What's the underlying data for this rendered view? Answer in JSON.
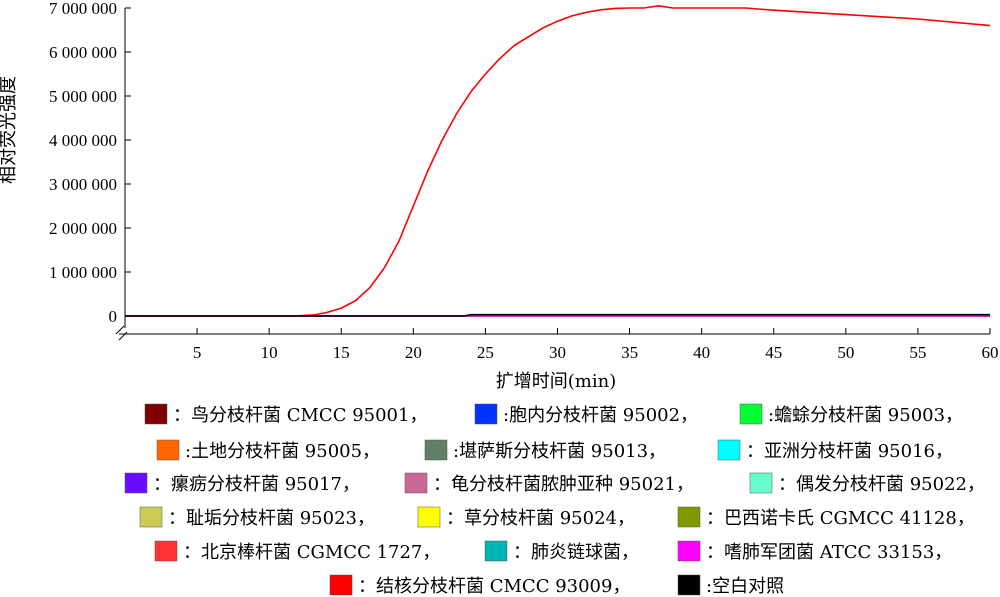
{
  "chart_data": {
    "type": "line",
    "ylabel": "相对荧光强度",
    "xlabel": "扩增时间(min)",
    "xlim": [
      0,
      60
    ],
    "ylim": [
      0,
      7000000
    ],
    "x_ticks": [
      5,
      10,
      15,
      20,
      25,
      30,
      35,
      40,
      45,
      50,
      55,
      60
    ],
    "x_tick_labels": [
      "5",
      "10",
      "15",
      "20",
      "25",
      "30",
      "35",
      "40",
      "45",
      "50",
      "55",
      "60"
    ],
    "y_ticks": [
      0,
      1000000,
      2000000,
      3000000,
      4000000,
      5000000,
      6000000,
      7000000
    ],
    "y_tick_labels": [
      "0",
      "1 000 000",
      "2 000 000",
      "3 000 000",
      "4 000 000",
      "5 000 000",
      "6 000 000",
      "7 000 000"
    ],
    "grid": false,
    "legend_position": "bottom",
    "series": [
      {
        "name": "：鸟分枝杆菌 CMCC 95001，",
        "color": "#7f0000",
        "x": [
          0,
          60
        ],
        "y": [
          0,
          0
        ]
      },
      {
        "name": ":胞内分枝杆菌 95002，",
        "color": "#0033ff",
        "x": [
          0,
          60
        ],
        "y": [
          0,
          0
        ]
      },
      {
        "name": ":蟾蜍分枝杆菌 95003，",
        "color": "#00ff33",
        "x": [
          0,
          60
        ],
        "y": [
          0,
          0
        ]
      },
      {
        "name": ":土地分枝杆菌 95005，",
        "color": "#ff6600",
        "x": [
          0,
          60
        ],
        "y": [
          0,
          0
        ]
      },
      {
        "name": ":堪萨斯分枝杆菌 95013，",
        "color": "#5f7f66",
        "x": [
          0,
          60
        ],
        "y": [
          0,
          0
        ]
      },
      {
        "name": "：亚洲分枝杆菌 95016，",
        "color": "#00ffff",
        "x": [
          0,
          60
        ],
        "y": [
          0,
          0
        ]
      },
      {
        "name": "：瘰疬分枝杆菌 95017，",
        "color": "#6a0dff",
        "x": [
          0,
          60
        ],
        "y": [
          0,
          0
        ]
      },
      {
        "name": "：龟分枝杆菌脓肿亚种 95021，",
        "color": "#cc6699",
        "x": [
          0,
          60
        ],
        "y": [
          0,
          0
        ]
      },
      {
        "name": "：偶发分枝杆菌 95022，",
        "color": "#66ffcc",
        "x": [
          0,
          60
        ],
        "y": [
          0,
          0
        ]
      },
      {
        "name": "：耻垢分枝杆菌 95023，",
        "color": "#cccc55",
        "x": [
          0,
          60
        ],
        "y": [
          0,
          0
        ]
      },
      {
        "name": "：草分枝杆菌 95024，",
        "color": "#ffff00",
        "x": [
          0,
          60
        ],
        "y": [
          0,
          0
        ]
      },
      {
        "name": "：巴西诺卡氏 CGMCC 41128，",
        "color": "#7f9900",
        "x": [
          0,
          60
        ],
        "y": [
          0,
          0
        ]
      },
      {
        "name": "：北京棒杆菌 CGMCC 1727，",
        "color": "#ff3333",
        "x": [
          0,
          60
        ],
        "y": [
          0,
          0
        ]
      },
      {
        "name": "：肺炎链球菌，",
        "color": "#00b3b3",
        "x": [
          0,
          60
        ],
        "y": [
          0,
          0
        ]
      },
      {
        "name": "：嗜肺军团菌 ATCC 33153，",
        "color": "#ff00ff",
        "x": [
          0,
          60
        ],
        "y": [
          0,
          0
        ]
      },
      {
        "name": "：结核分枝杆菌 CMCC 93009，",
        "color": "#ff0000",
        "x": [
          0,
          10,
          12,
          13,
          14,
          15,
          16,
          17,
          18,
          19,
          20,
          21,
          22,
          23,
          24,
          25,
          26,
          27,
          28,
          29,
          30,
          31,
          32,
          33,
          34,
          35,
          36,
          37,
          38,
          40,
          43,
          45,
          50,
          55,
          60
        ],
        "y": [
          0,
          0,
          5000,
          20000,
          80000,
          180000,
          350000,
          650000,
          1100000,
          1700000,
          2500000,
          3300000,
          4000000,
          4600000,
          5100000,
          5500000,
          5850000,
          6150000,
          6350000,
          6550000,
          6700000,
          6820000,
          6900000,
          6960000,
          6990000,
          7000000,
          7000000,
          7050000,
          7000000,
          7000000,
          7000000,
          6950000,
          6850000,
          6750000,
          6600000
        ]
      },
      {
        "name": ":空白对照",
        "color": "#000000",
        "x": [
          0,
          23.5,
          24,
          60
        ],
        "y": [
          0,
          0,
          30000,
          30000
        ]
      }
    ]
  }
}
